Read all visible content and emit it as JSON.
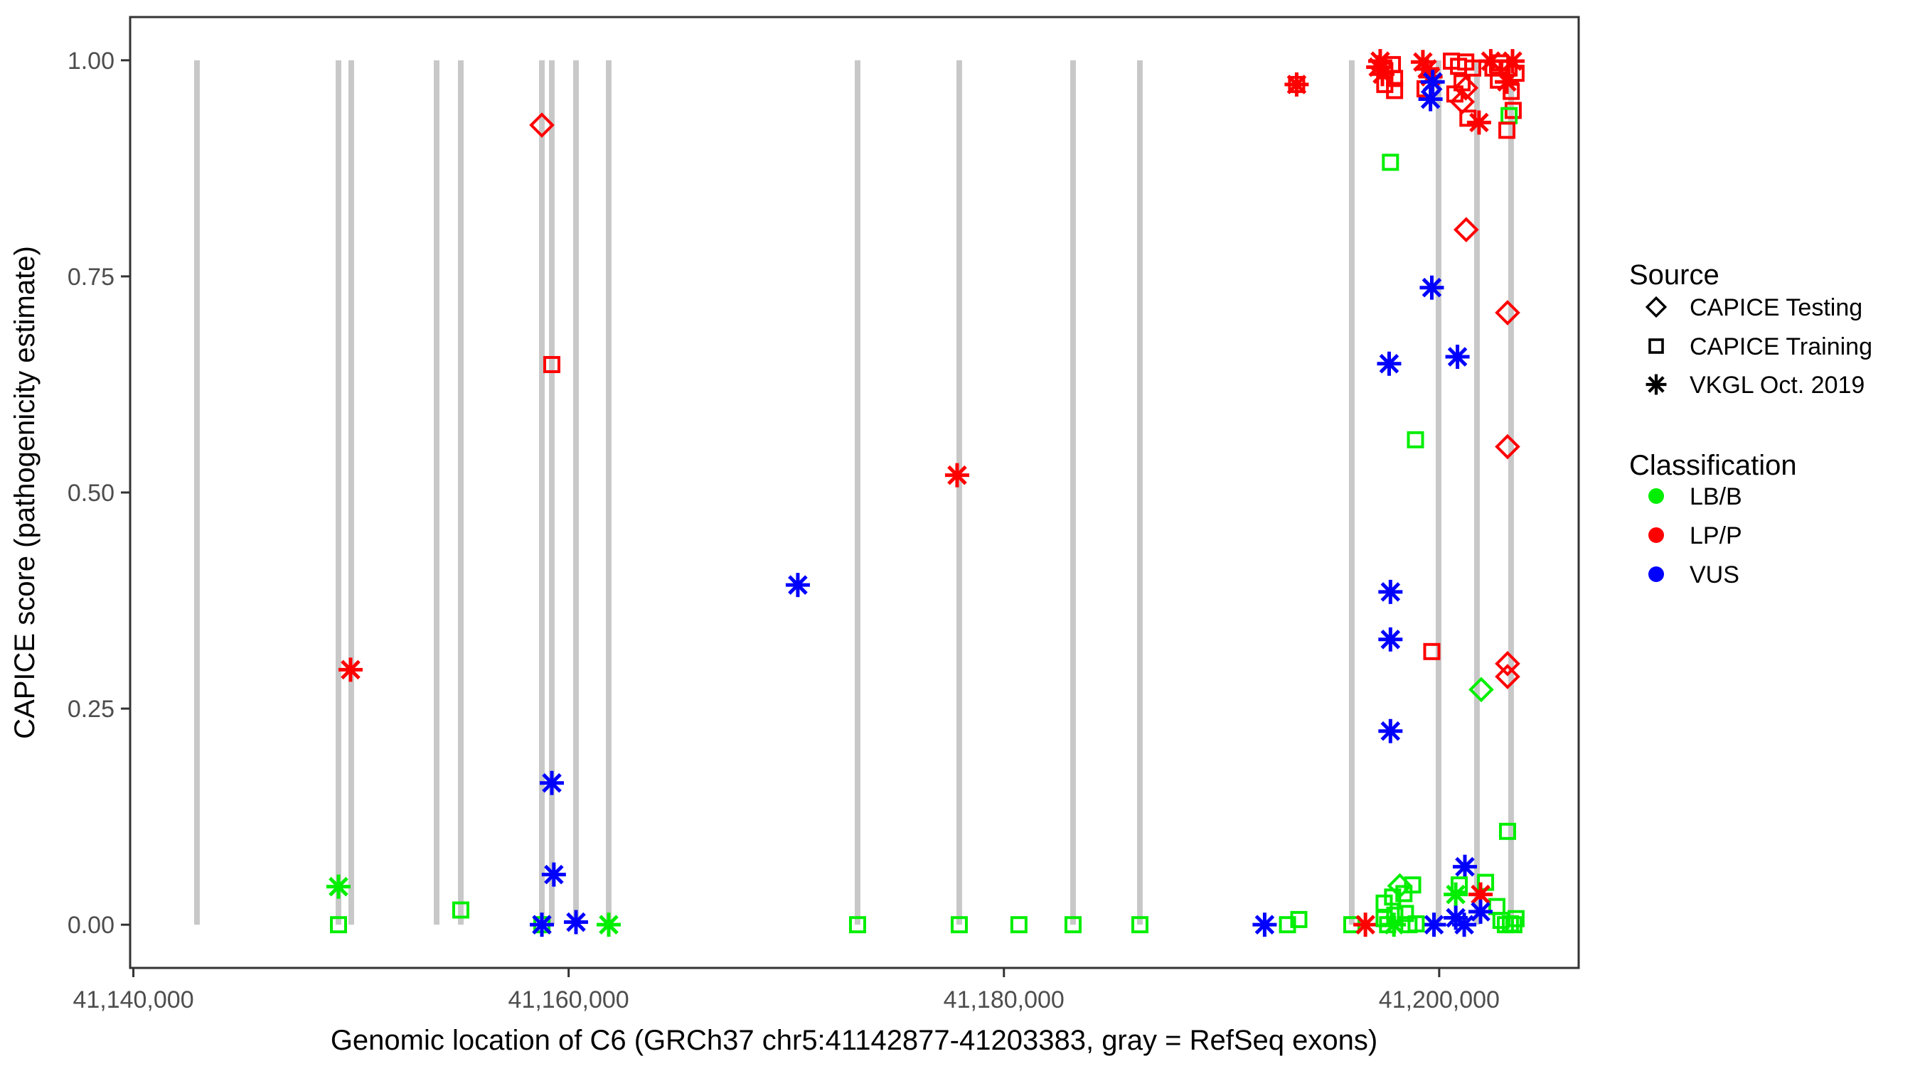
{
  "figure": {
    "background": "#ffffff",
    "border_color": "#333333"
  },
  "legend": {
    "source": {
      "title": "Source",
      "items": [
        {
          "label": "CAPICE Testing",
          "marker": "diamond"
        },
        {
          "label": "CAPICE Training",
          "marker": "square"
        },
        {
          "label": "VKGL Oct. 2019",
          "marker": "star"
        }
      ]
    },
    "classification": {
      "title": "Classification",
      "items": [
        {
          "label": "LB/B",
          "color": "#00EE00"
        },
        {
          "label": "LP/P",
          "color": "#FF0000"
        },
        {
          "label": "VUS",
          "color": "#0000FF"
        }
      ]
    }
  },
  "chart_data": {
    "type": "scatter",
    "title": "",
    "xlabel": "Genomic location of C6 (GRCh37 chr5:41142877-41203383, gray = RefSeq exons)",
    "ylabel": "CAPICE score (pathogenicity estimate)",
    "grid": false,
    "legend_position": "right",
    "x_domain": [
      41139852,
      41206408
    ],
    "y_domain": [
      -0.05,
      1.05
    ],
    "x_ticks": [
      {
        "value": 41140000,
        "label": "41,140,000"
      },
      {
        "value": 41160000,
        "label": "41,160,000"
      },
      {
        "value": 41180000,
        "label": "41,180,000"
      },
      {
        "value": 41200000,
        "label": "41,200,000"
      }
    ],
    "y_ticks": [
      {
        "value": 0.0,
        "label": "0.00"
      },
      {
        "value": 0.25,
        "label": "0.25"
      },
      {
        "value": 0.5,
        "label": "0.50"
      },
      {
        "value": 0.75,
        "label": "0.75"
      },
      {
        "value": 1.0,
        "label": "1.00"
      }
    ],
    "exon_color": "#C8C8C8",
    "exon_width_bp": 260,
    "exons": [
      41142923,
      41149425,
      41150013,
      41153934,
      41155045,
      41158770,
      41159227,
      41160338,
      41161841,
      41173276,
      41177948,
      41183176,
      41186247,
      41195984,
      41199970,
      41201734,
      41203302
    ],
    "colors": {
      "LB/B": "#00EE00",
      "LP/P": "#FF0000",
      "VUS": "#0000FF"
    },
    "markers": {
      "CAPICE Testing": "diamond",
      "CAPICE Training": "square",
      "VKGL Oct. 2019": "star"
    },
    "source_names": {
      "testing": "CAPICE Testing",
      "training": "CAPICE Training",
      "vkgl": "VKGL Oct. 2019"
    },
    "point_format": [
      "bp",
      "score",
      "source",
      "classification"
    ],
    "points": [
      [
        41149425,
        0.044,
        "vkgl",
        "LB/B"
      ],
      [
        41149425,
        0.0,
        "training",
        "LB/B"
      ],
      [
        41149980,
        0.295,
        "vkgl",
        "LP/P"
      ],
      [
        41155045,
        0.017,
        "training",
        "LB/B"
      ],
      [
        41158770,
        0.925,
        "testing",
        "LP/P"
      ],
      [
        41159227,
        0.648,
        "training",
        "LP/P"
      ],
      [
        41159227,
        0.164,
        "vkgl",
        "VUS"
      ],
      [
        41159320,
        0.058,
        "vkgl",
        "VUS"
      ],
      [
        41158770,
        0.0,
        "training",
        "LB/B"
      ],
      [
        41158770,
        0.0,
        "vkgl",
        "VUS"
      ],
      [
        41160338,
        0.003,
        "vkgl",
        "VUS"
      ],
      [
        41161841,
        0.0,
        "vkgl",
        "LB/B"
      ],
      [
        41170530,
        0.393,
        "vkgl",
        "VUS"
      ],
      [
        41177850,
        0.52,
        "vkgl",
        "LP/P"
      ],
      [
        41173276,
        0.0,
        "training",
        "LB/B"
      ],
      [
        41177948,
        0.0,
        "training",
        "LB/B"
      ],
      [
        41180690,
        0.0,
        "training",
        "LB/B"
      ],
      [
        41183176,
        0.0,
        "training",
        "LB/B"
      ],
      [
        41186247,
        0.0,
        "training",
        "LB/B"
      ],
      [
        41191980,
        0.0,
        "vkgl",
        "VUS"
      ],
      [
        41193030,
        0.0,
        "training",
        "LB/B"
      ],
      [
        41193550,
        0.006,
        "training",
        "LB/B"
      ],
      [
        41195984,
        0.0,
        "training",
        "LB/B"
      ],
      [
        41196610,
        0.0,
        "vkgl",
        "LP/P"
      ],
      [
        41193450,
        0.972,
        "training",
        "LP/P"
      ],
      [
        41193450,
        0.972,
        "vkgl",
        "LP/P"
      ],
      [
        41197290,
        0.999,
        "vkgl",
        "LP/P"
      ],
      [
        41197200,
        0.992,
        "vkgl",
        "LP/P"
      ],
      [
        41197390,
        0.984,
        "vkgl",
        "LP/P"
      ],
      [
        41197500,
        0.988,
        "training",
        "LP/P"
      ],
      [
        41197850,
        0.995,
        "training",
        "LP/P"
      ],
      [
        41197950,
        0.979,
        "training",
        "LP/P"
      ],
      [
        41197950,
        0.965,
        "training",
        "LP/P"
      ],
      [
        41197500,
        0.972,
        "training",
        "LP/P"
      ],
      [
        41199250,
        0.998,
        "vkgl",
        "LP/P"
      ],
      [
        41199450,
        0.99,
        "vkgl",
        "LP/P"
      ],
      [
        41199600,
        0.981,
        "vkgl",
        "LP/P"
      ],
      [
        41199350,
        0.967,
        "training",
        "LP/P"
      ],
      [
        41199700,
        0.975,
        "vkgl",
        "VUS"
      ],
      [
        41199600,
        0.955,
        "vkgl",
        "VUS"
      ],
      [
        41200560,
        0.999,
        "training",
        "LP/P"
      ],
      [
        41200890,
        0.993,
        "training",
        "LP/P"
      ],
      [
        41201220,
        0.998,
        "training",
        "LP/P"
      ],
      [
        41201540,
        0.991,
        "training",
        "LP/P"
      ],
      [
        41201050,
        0.974,
        "training",
        "LP/P"
      ],
      [
        41200720,
        0.961,
        "training",
        "LP/P"
      ],
      [
        41201220,
        0.968,
        "testing",
        "LP/P"
      ],
      [
        41201060,
        0.952,
        "testing",
        "LP/P"
      ],
      [
        41201320,
        0.933,
        "training",
        "LP/P"
      ],
      [
        41201830,
        0.928,
        "vkgl",
        "LP/P"
      ],
      [
        41202370,
        0.999,
        "vkgl",
        "LP/P"
      ],
      [
        41203370,
        0.999,
        "vkgl",
        "LP/P"
      ],
      [
        41203110,
        0.975,
        "vkgl",
        "LP/P"
      ],
      [
        41202470,
        0.991,
        "training",
        "LP/P"
      ],
      [
        41202820,
        0.997,
        "training",
        "LP/P"
      ],
      [
        41203210,
        0.991,
        "training",
        "LP/P"
      ],
      [
        41203530,
        0.985,
        "training",
        "LP/P"
      ],
      [
        41202720,
        0.977,
        "training",
        "LP/P"
      ],
      [
        41203310,
        0.964,
        "training",
        "LP/P"
      ],
      [
        41203400,
        0.942,
        "training",
        "LP/P"
      ],
      [
        41203210,
        0.936,
        "training",
        "LB/B"
      ],
      [
        41203110,
        0.919,
        "training",
        "LP/P"
      ],
      [
        41197760,
        0.882,
        "training",
        "LB/B"
      ],
      [
        41201240,
        0.804,
        "testing",
        "LP/P"
      ],
      [
        41199660,
        0.737,
        "vkgl",
        "VUS"
      ],
      [
        41200840,
        0.657,
        "vkgl",
        "VUS"
      ],
      [
        41197700,
        0.649,
        "vkgl",
        "VUS"
      ],
      [
        41198910,
        0.561,
        "training",
        "LB/B"
      ],
      [
        41203140,
        0.708,
        "testing",
        "LP/P"
      ],
      [
        41203140,
        0.553,
        "testing",
        "LP/P"
      ],
      [
        41197760,
        0.385,
        "vkgl",
        "VUS"
      ],
      [
        41197760,
        0.33,
        "vkgl",
        "VUS"
      ],
      [
        41199660,
        0.316,
        "training",
        "LP/P"
      ],
      [
        41203140,
        0.302,
        "testing",
        "LP/P"
      ],
      [
        41203140,
        0.287,
        "testing",
        "LP/P"
      ],
      [
        41201930,
        0.272,
        "testing",
        "LB/B"
      ],
      [
        41197760,
        0.224,
        "vkgl",
        "VUS"
      ],
      [
        41203140,
        0.108,
        "training",
        "LB/B"
      ],
      [
        41201180,
        0.067,
        "vkgl",
        "VUS"
      ],
      [
        41198190,
        0.045,
        "testing",
        "LB/B"
      ],
      [
        41198780,
        0.046,
        "training",
        "LB/B"
      ],
      [
        41200920,
        0.046,
        "training",
        "LB/B"
      ],
      [
        41202130,
        0.049,
        "training",
        "LB/B"
      ],
      [
        41202650,
        0.021,
        "training",
        "LB/B"
      ],
      [
        41201900,
        0.035,
        "vkgl",
        "LP/P"
      ],
      [
        41200760,
        0.035,
        "vkgl",
        "LB/B"
      ],
      [
        41200760,
        0.008,
        "vkgl",
        "VUS"
      ],
      [
        41201900,
        0.015,
        "vkgl",
        "VUS"
      ],
      [
        41199760,
        0.0,
        "vkgl",
        "VUS"
      ],
      [
        41201150,
        0.0,
        "vkgl",
        "VUS"
      ],
      [
        41197470,
        0.025,
        "training",
        "LB/B"
      ],
      [
        41197860,
        0.032,
        "training",
        "LB/B"
      ],
      [
        41198380,
        0.036,
        "training",
        "LB/B"
      ],
      [
        41197470,
        0.007,
        "training",
        "LB/B"
      ],
      [
        41197960,
        0.011,
        "training",
        "LB/B"
      ],
      [
        41198450,
        0.013,
        "training",
        "LB/B"
      ],
      [
        41198940,
        0.001,
        "training",
        "LB/B"
      ],
      [
        41197630,
        0.0,
        "training",
        "LB/B"
      ],
      [
        41198610,
        0.0,
        "training",
        "LB/B"
      ],
      [
        41197920,
        0.0,
        "vkgl",
        "LB/B"
      ],
      [
        41202840,
        0.005,
        "training",
        "LB/B"
      ],
      [
        41203270,
        0.001,
        "training",
        "LB/B"
      ],
      [
        41203530,
        0.007,
        "training",
        "LB/B"
      ],
      [
        41203040,
        0.0,
        "training",
        "LB/B"
      ],
      [
        41203430,
        0.0,
        "training",
        "LB/B"
      ]
    ]
  }
}
